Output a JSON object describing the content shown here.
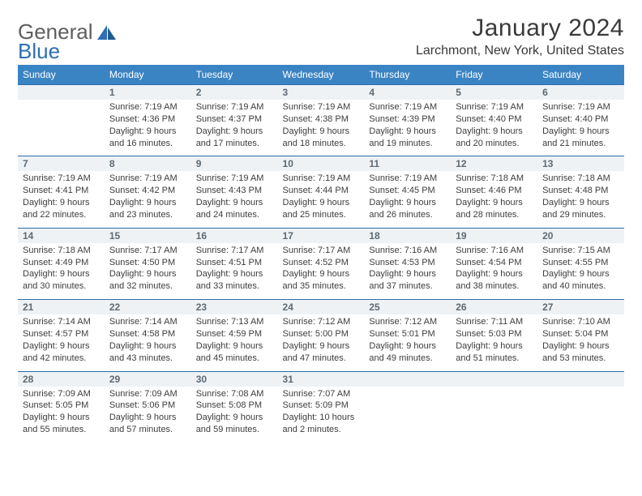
{
  "branding": {
    "word1": "General",
    "word2": "Blue",
    "logo_color": "#2f6fb3",
    "gray_color": "#5e5e5e"
  },
  "header": {
    "month_title": "January 2024",
    "location": "Larchmont, New York, United States"
  },
  "styling": {
    "header_bg": "#3b84c4",
    "header_text": "#ffffff",
    "daynum_bg": "#eef2f5",
    "daynum_border": "#2e6ca7",
    "body_text": "#3d3d3d",
    "page_bg": "#ffffff"
  },
  "weekdays": [
    "Sunday",
    "Monday",
    "Tuesday",
    "Wednesday",
    "Thursday",
    "Friday",
    "Saturday"
  ],
  "weeks": [
    [
      null,
      {
        "n": "1",
        "sr": "Sunrise: 7:19 AM",
        "ss": "Sunset: 4:36 PM",
        "d1": "Daylight: 9 hours",
        "d2": "and 16 minutes."
      },
      {
        "n": "2",
        "sr": "Sunrise: 7:19 AM",
        "ss": "Sunset: 4:37 PM",
        "d1": "Daylight: 9 hours",
        "d2": "and 17 minutes."
      },
      {
        "n": "3",
        "sr": "Sunrise: 7:19 AM",
        "ss": "Sunset: 4:38 PM",
        "d1": "Daylight: 9 hours",
        "d2": "and 18 minutes."
      },
      {
        "n": "4",
        "sr": "Sunrise: 7:19 AM",
        "ss": "Sunset: 4:39 PM",
        "d1": "Daylight: 9 hours",
        "d2": "and 19 minutes."
      },
      {
        "n": "5",
        "sr": "Sunrise: 7:19 AM",
        "ss": "Sunset: 4:40 PM",
        "d1": "Daylight: 9 hours",
        "d2": "and 20 minutes."
      },
      {
        "n": "6",
        "sr": "Sunrise: 7:19 AM",
        "ss": "Sunset: 4:40 PM",
        "d1": "Daylight: 9 hours",
        "d2": "and 21 minutes."
      }
    ],
    [
      {
        "n": "7",
        "sr": "Sunrise: 7:19 AM",
        "ss": "Sunset: 4:41 PM",
        "d1": "Daylight: 9 hours",
        "d2": "and 22 minutes."
      },
      {
        "n": "8",
        "sr": "Sunrise: 7:19 AM",
        "ss": "Sunset: 4:42 PM",
        "d1": "Daylight: 9 hours",
        "d2": "and 23 minutes."
      },
      {
        "n": "9",
        "sr": "Sunrise: 7:19 AM",
        "ss": "Sunset: 4:43 PM",
        "d1": "Daylight: 9 hours",
        "d2": "and 24 minutes."
      },
      {
        "n": "10",
        "sr": "Sunrise: 7:19 AM",
        "ss": "Sunset: 4:44 PM",
        "d1": "Daylight: 9 hours",
        "d2": "and 25 minutes."
      },
      {
        "n": "11",
        "sr": "Sunrise: 7:19 AM",
        "ss": "Sunset: 4:45 PM",
        "d1": "Daylight: 9 hours",
        "d2": "and 26 minutes."
      },
      {
        "n": "12",
        "sr": "Sunrise: 7:18 AM",
        "ss": "Sunset: 4:46 PM",
        "d1": "Daylight: 9 hours",
        "d2": "and 28 minutes."
      },
      {
        "n": "13",
        "sr": "Sunrise: 7:18 AM",
        "ss": "Sunset: 4:48 PM",
        "d1": "Daylight: 9 hours",
        "d2": "and 29 minutes."
      }
    ],
    [
      {
        "n": "14",
        "sr": "Sunrise: 7:18 AM",
        "ss": "Sunset: 4:49 PM",
        "d1": "Daylight: 9 hours",
        "d2": "and 30 minutes."
      },
      {
        "n": "15",
        "sr": "Sunrise: 7:17 AM",
        "ss": "Sunset: 4:50 PM",
        "d1": "Daylight: 9 hours",
        "d2": "and 32 minutes."
      },
      {
        "n": "16",
        "sr": "Sunrise: 7:17 AM",
        "ss": "Sunset: 4:51 PM",
        "d1": "Daylight: 9 hours",
        "d2": "and 33 minutes."
      },
      {
        "n": "17",
        "sr": "Sunrise: 7:17 AM",
        "ss": "Sunset: 4:52 PM",
        "d1": "Daylight: 9 hours",
        "d2": "and 35 minutes."
      },
      {
        "n": "18",
        "sr": "Sunrise: 7:16 AM",
        "ss": "Sunset: 4:53 PM",
        "d1": "Daylight: 9 hours",
        "d2": "and 37 minutes."
      },
      {
        "n": "19",
        "sr": "Sunrise: 7:16 AM",
        "ss": "Sunset: 4:54 PM",
        "d1": "Daylight: 9 hours",
        "d2": "and 38 minutes."
      },
      {
        "n": "20",
        "sr": "Sunrise: 7:15 AM",
        "ss": "Sunset: 4:55 PM",
        "d1": "Daylight: 9 hours",
        "d2": "and 40 minutes."
      }
    ],
    [
      {
        "n": "21",
        "sr": "Sunrise: 7:14 AM",
        "ss": "Sunset: 4:57 PM",
        "d1": "Daylight: 9 hours",
        "d2": "and 42 minutes."
      },
      {
        "n": "22",
        "sr": "Sunrise: 7:14 AM",
        "ss": "Sunset: 4:58 PM",
        "d1": "Daylight: 9 hours",
        "d2": "and 43 minutes."
      },
      {
        "n": "23",
        "sr": "Sunrise: 7:13 AM",
        "ss": "Sunset: 4:59 PM",
        "d1": "Daylight: 9 hours",
        "d2": "and 45 minutes."
      },
      {
        "n": "24",
        "sr": "Sunrise: 7:12 AM",
        "ss": "Sunset: 5:00 PM",
        "d1": "Daylight: 9 hours",
        "d2": "and 47 minutes."
      },
      {
        "n": "25",
        "sr": "Sunrise: 7:12 AM",
        "ss": "Sunset: 5:01 PM",
        "d1": "Daylight: 9 hours",
        "d2": "and 49 minutes."
      },
      {
        "n": "26",
        "sr": "Sunrise: 7:11 AM",
        "ss": "Sunset: 5:03 PM",
        "d1": "Daylight: 9 hours",
        "d2": "and 51 minutes."
      },
      {
        "n": "27",
        "sr": "Sunrise: 7:10 AM",
        "ss": "Sunset: 5:04 PM",
        "d1": "Daylight: 9 hours",
        "d2": "and 53 minutes."
      }
    ],
    [
      {
        "n": "28",
        "sr": "Sunrise: 7:09 AM",
        "ss": "Sunset: 5:05 PM",
        "d1": "Daylight: 9 hours",
        "d2": "and 55 minutes."
      },
      {
        "n": "29",
        "sr": "Sunrise: 7:09 AM",
        "ss": "Sunset: 5:06 PM",
        "d1": "Daylight: 9 hours",
        "d2": "and 57 minutes."
      },
      {
        "n": "30",
        "sr": "Sunrise: 7:08 AM",
        "ss": "Sunset: 5:08 PM",
        "d1": "Daylight: 9 hours",
        "d2": "and 59 minutes."
      },
      {
        "n": "31",
        "sr": "Sunrise: 7:07 AM",
        "ss": "Sunset: 5:09 PM",
        "d1": "Daylight: 10 hours",
        "d2": "and 2 minutes."
      },
      null,
      null,
      null
    ]
  ]
}
